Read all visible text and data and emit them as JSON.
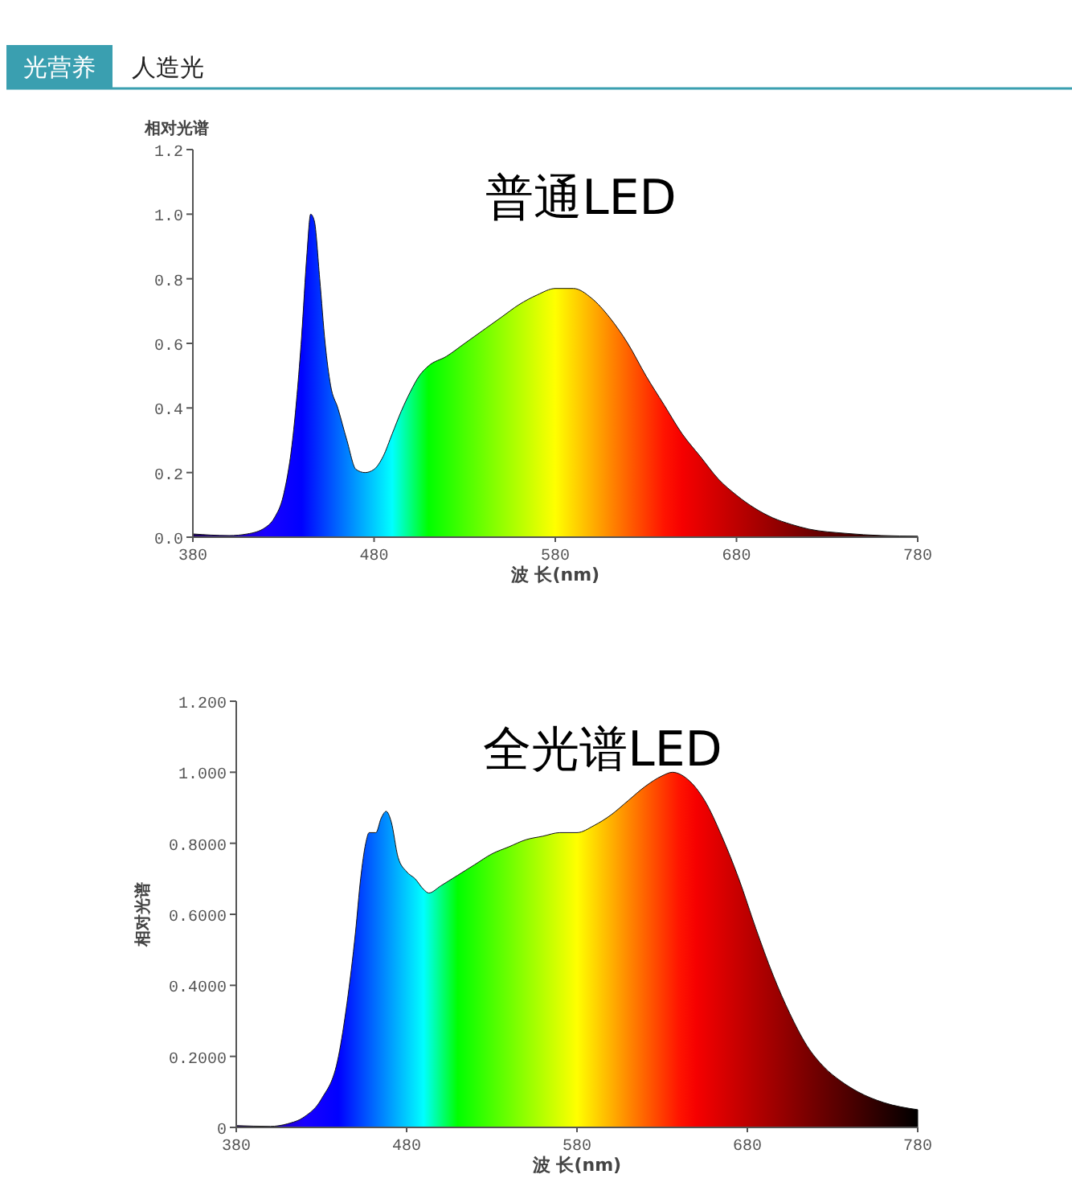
{
  "chart_data": [
    {
      "type": "other",
      "annotations": [
        "光营养",
        "人造光"
      ]
    },
    {
      "type": "area",
      "title": "普通LED",
      "xlabel": "波 长(nm)",
      "ylabel": "相对光谱",
      "xlim": [
        380,
        780
      ],
      "xticks": [
        380,
        480,
        580,
        680,
        780
      ],
      "ylim": [
        0,
        1.2
      ],
      "yticks": [
        {
          "value": 0,
          "label": "0.0"
        },
        {
          "value": 0.2,
          "label": "0.2"
        },
        {
          "value": 0.4,
          "label": "0.4"
        },
        {
          "value": 0.6,
          "label": "0.6"
        },
        {
          "value": 0.8,
          "label": "0.8"
        },
        {
          "value": 1,
          "label": "1.0"
        },
        {
          "value": 1.2,
          "label": "1.2"
        }
      ],
      "x": [
        380,
        400,
        410,
        420,
        425,
        430,
        435,
        440,
        443,
        445,
        447,
        450,
        453,
        456,
        460,
        465,
        470,
        475,
        480,
        485,
        490,
        495,
        500,
        505,
        510,
        520,
        530,
        540,
        550,
        560,
        570,
        580,
        590,
        600,
        610,
        620,
        630,
        640,
        650,
        660,
        670,
        680,
        690,
        700,
        710,
        720,
        740,
        760,
        780
      ],
      "values": [
        0.01,
        0.005,
        0.01,
        0.03,
        0.06,
        0.13,
        0.3,
        0.62,
        0.88,
        1.0,
        0.98,
        0.8,
        0.6,
        0.47,
        0.4,
        0.3,
        0.21,
        0.2,
        0.21,
        0.25,
        0.32,
        0.39,
        0.45,
        0.5,
        0.53,
        0.56,
        0.6,
        0.64,
        0.68,
        0.72,
        0.75,
        0.77,
        0.77,
        0.74,
        0.68,
        0.6,
        0.5,
        0.41,
        0.32,
        0.25,
        0.18,
        0.13,
        0.09,
        0.06,
        0.04,
        0.025,
        0.012,
        0.005,
        0.003
      ]
    },
    {
      "type": "area",
      "title": "全光谱LED",
      "xlabel": "波 长(nm)",
      "ylabel": "相对光谱",
      "xlim": [
        380,
        780
      ],
      "xticks": [
        380,
        480,
        580,
        680,
        780
      ],
      "ylim": [
        0,
        1.2
      ],
      "yticks": [
        0,
        {
          "value": 0.2,
          "label": "0.2000"
        },
        {
          "value": 0.4,
          "label": "0.4000"
        },
        {
          "value": 0.6,
          "label": "0.6000"
        },
        {
          "value": 0.8,
          "label": "0.8000"
        },
        {
          "value": 1,
          "label": "1.000"
        },
        {
          "value": 1.2,
          "label": "1.200"
        }
      ],
      "x": [
        380,
        400,
        410,
        420,
        430,
        440,
        445,
        450,
        453,
        456,
        458,
        462,
        465,
        468,
        471,
        475,
        480,
        485,
        490,
        493,
        500,
        510,
        520,
        530,
        540,
        550,
        560,
        570,
        580,
        590,
        600,
        610,
        620,
        630,
        636,
        645,
        655,
        665,
        675,
        685,
        695,
        705,
        715,
        725,
        735,
        745,
        760,
        780
      ],
      "values": [
        0.005,
        0.003,
        0.01,
        0.03,
        0.08,
        0.2,
        0.35,
        0.55,
        0.7,
        0.8,
        0.83,
        0.83,
        0.87,
        0.89,
        0.86,
        0.76,
        0.72,
        0.7,
        0.67,
        0.66,
        0.68,
        0.71,
        0.74,
        0.77,
        0.79,
        0.81,
        0.82,
        0.83,
        0.83,
        0.85,
        0.88,
        0.92,
        0.96,
        0.99,
        1.0,
        0.98,
        0.92,
        0.82,
        0.7,
        0.56,
        0.43,
        0.32,
        0.23,
        0.17,
        0.13,
        0.1,
        0.07,
        0.05
      ]
    }
  ]
}
